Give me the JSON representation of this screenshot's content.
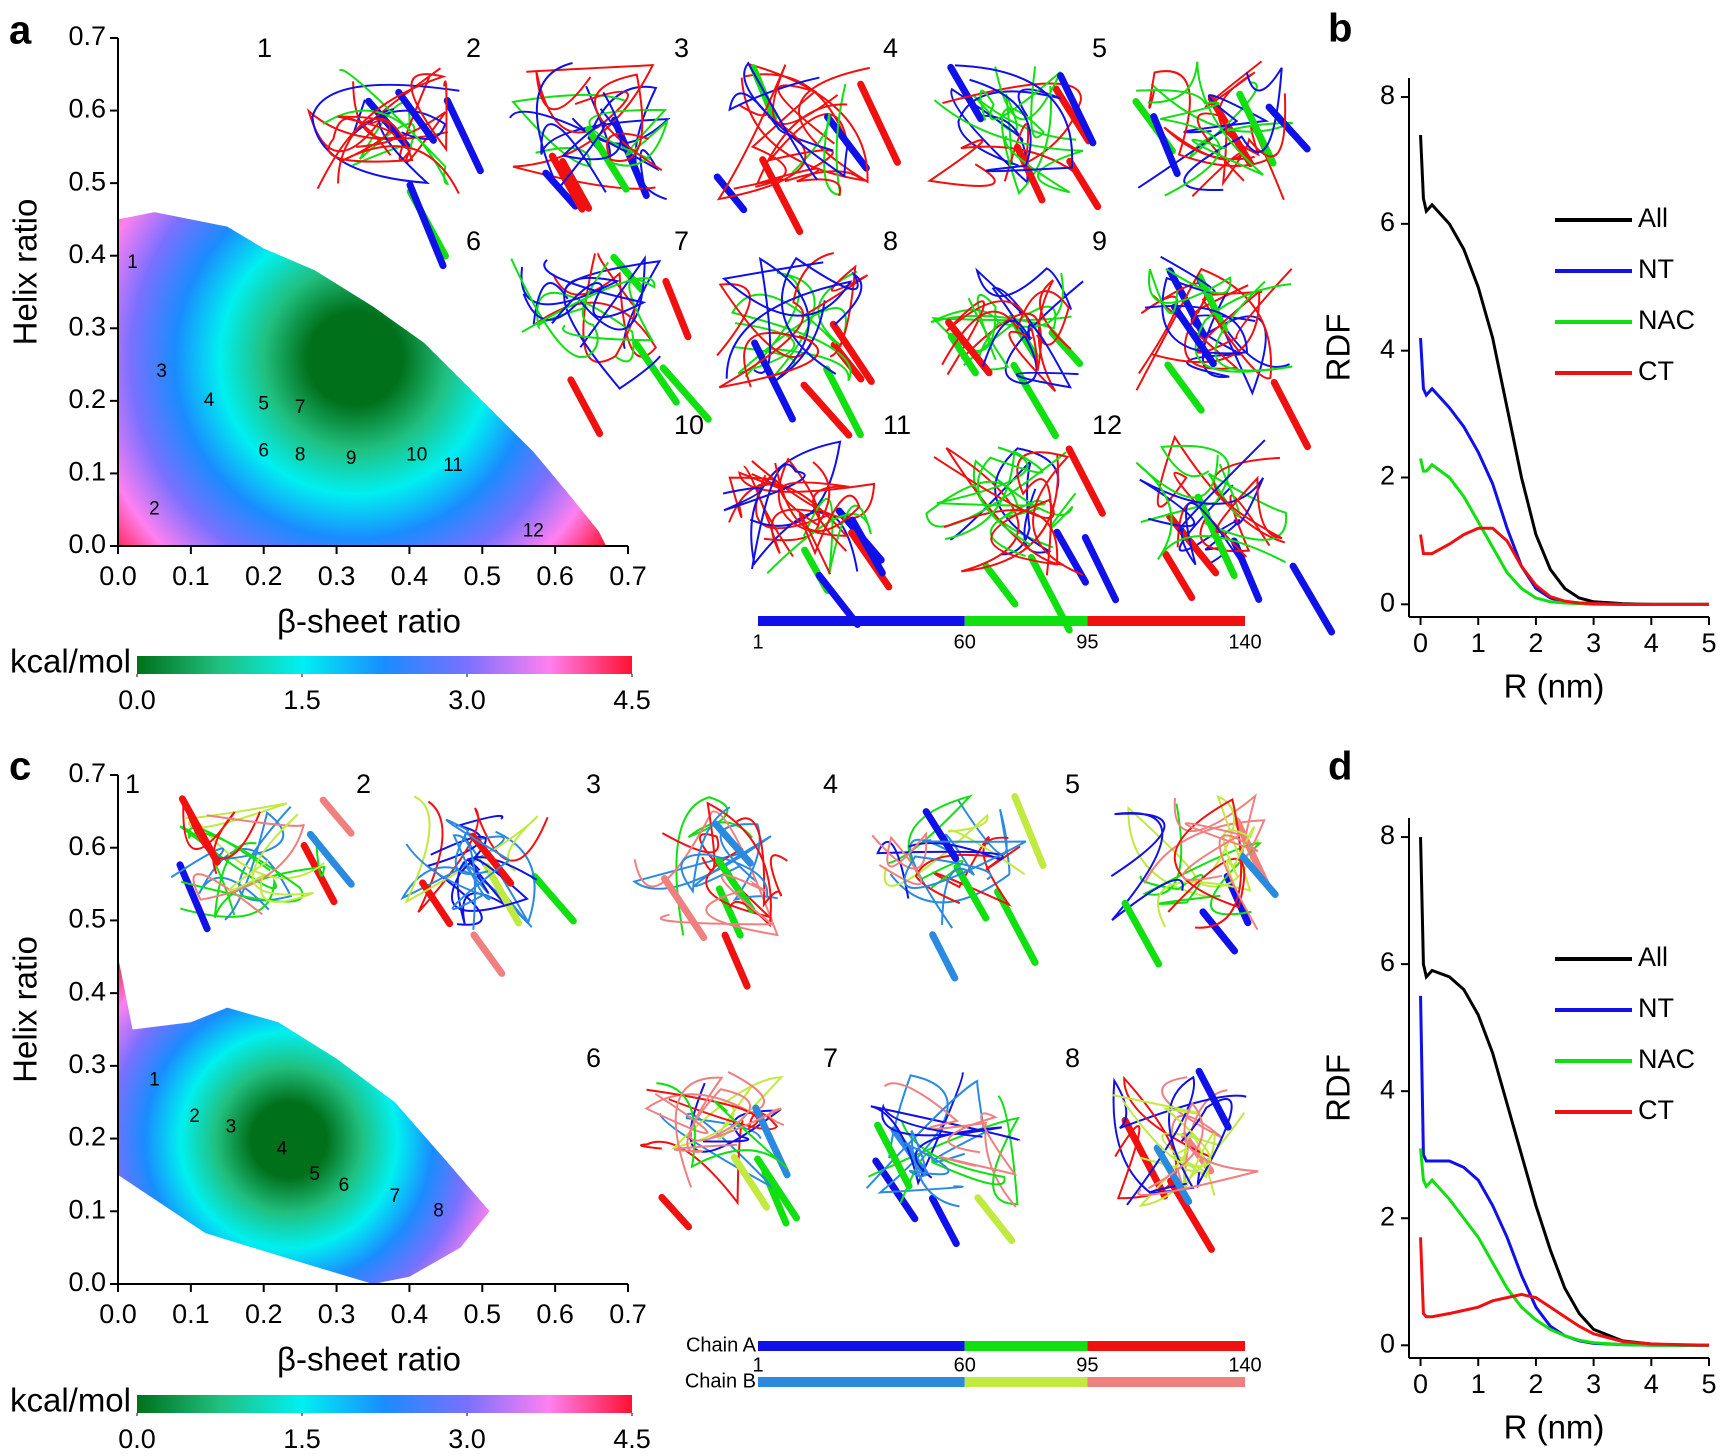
{
  "chart_data": [
    {
      "type": "contour",
      "panel": "a",
      "xlabel": "β-sheet ratio",
      "ylabel": "Helix ratio",
      "xlim": [
        0,
        0.7
      ],
      "ylim": [
        0,
        0.7
      ],
      "xticks": [
        {
          "value": 0,
          "label": "0.0"
        },
        0.1,
        0.2,
        0.3,
        0.4,
        0.5,
        0.6,
        0.7
      ],
      "yticks": [
        {
          "value": 0,
          "label": "0.0"
        },
        0.1,
        0.2,
        0.3,
        0.4,
        0.5,
        0.6,
        0.7
      ],
      "region": {
        "x": [
          0,
          0.05,
          0.1,
          0.15,
          0.2,
          0.27,
          0.35,
          0.42,
          0.5,
          0.57,
          0.62,
          0.66,
          0.67,
          0
        ],
        "y": [
          0.45,
          0.46,
          0.45,
          0.44,
          0.41,
          0.38,
          0.33,
          0.28,
          0.2,
          0.13,
          0.07,
          0.02,
          0,
          0
        ]
      },
      "points": {
        "labels": [
          "1",
          "2",
          "3",
          "4",
          "5",
          "6",
          "7",
          "8",
          "9",
          "10",
          "11",
          "12"
        ],
        "x": [
          0.02,
          0.05,
          0.06,
          0.125,
          0.2,
          0.2,
          0.25,
          0.25,
          0.32,
          0.41,
          0.46,
          0.57
        ],
        "y": [
          0.39,
          0.05,
          0.24,
          0.2,
          0.195,
          0.13,
          0.19,
          0.125,
          0.12,
          0.125,
          0.11,
          0.02
        ]
      },
      "colorbar": {
        "label": "kcal/mol",
        "lim": [
          0,
          4.5
        ],
        "ticks": [
          {
            "value": 0,
            "label": "0.0"
          },
          1.5,
          {
            "value": 3,
            "label": "3.0"
          },
          4.5
        ],
        "colors": [
          "#00701a",
          "#20c080",
          "#00f0f0",
          "#1a8cff",
          "#7a70ff",
          "#ff80f0",
          "#ff1030"
        ]
      },
      "structures": [
        "1",
        "2",
        "3",
        "4",
        "5",
        "6",
        "7",
        "8",
        "9",
        "10",
        "11",
        "12"
      ],
      "sequence": {
        "ticks": [
          1,
          60,
          95,
          140
        ],
        "chains": [
          {
            "colors": [
              "#1010e8",
              "#10e010",
              "#f01010"
            ]
          }
        ]
      }
    },
    {
      "type": "line",
      "panel": "b",
      "xlabel": "R (nm)",
      "ylabel": "RDF",
      "xlim": [
        -0.2,
        5
      ],
      "ylim": [
        -0.2,
        8.3
      ],
      "xticks": [
        0,
        1,
        2,
        3,
        4,
        5
      ],
      "yticks": [
        0,
        2,
        4,
        6,
        8
      ],
      "x": [
        0,
        0.05,
        0.1,
        0.2,
        0.5,
        0.75,
        1,
        1.25,
        1.5,
        1.75,
        2,
        2.25,
        2.5,
        2.75,
        3,
        3.5,
        4,
        4.5,
        5
      ],
      "series": [
        {
          "name": "All",
          "color": "#000000",
          "values": [
            7.4,
            6.4,
            6.2,
            6.3,
            6.0,
            5.6,
            5.0,
            4.2,
            3.1,
            2.0,
            1.1,
            0.55,
            0.25,
            0.1,
            0.04,
            0.01,
            0,
            0,
            0
          ]
        },
        {
          "name": "NT",
          "color": "#1010e8",
          "values": [
            4.2,
            3.4,
            3.3,
            3.4,
            3.1,
            2.8,
            2.4,
            1.9,
            1.2,
            0.6,
            0.25,
            0.1,
            0.04,
            0.02,
            0.01,
            0,
            0,
            0,
            0
          ]
        },
        {
          "name": "NAC",
          "color": "#10e010",
          "values": [
            2.3,
            2.1,
            2.1,
            2.2,
            2.0,
            1.7,
            1.3,
            0.9,
            0.5,
            0.25,
            0.1,
            0.04,
            0.02,
            0.01,
            0,
            0,
            0,
            0,
            0
          ]
        },
        {
          "name": "CT",
          "color": "#f01010",
          "values": [
            1.1,
            0.8,
            0.8,
            0.8,
            0.95,
            1.1,
            1.2,
            1.2,
            1.0,
            0.6,
            0.3,
            0.12,
            0.05,
            0.02,
            0.01,
            0,
            0,
            0,
            0
          ]
        }
      ]
    },
    {
      "type": "contour",
      "panel": "c",
      "xlabel": "β-sheet ratio",
      "ylabel": "Helix ratio",
      "xlim": [
        0,
        0.7
      ],
      "ylim": [
        0,
        0.7
      ],
      "xticks": [
        {
          "value": 0,
          "label": "0.0"
        },
        0.1,
        0.2,
        0.3,
        0.4,
        0.5,
        0.6,
        0.7
      ],
      "yticks": [
        {
          "value": 0,
          "label": "0.0"
        },
        0.1,
        0.2,
        0.3,
        0.4,
        0.5,
        0.6,
        0.7
      ],
      "region": {
        "x": [
          0,
          0.02,
          0.1,
          0.15,
          0.22,
          0.3,
          0.38,
          0.45,
          0.51,
          0.47,
          0.4,
          0.35,
          0.25,
          0.12,
          0.03,
          0
        ],
        "y": [
          0.45,
          0.35,
          0.36,
          0.38,
          0.36,
          0.31,
          0.25,
          0.17,
          0.1,
          0.05,
          0.01,
          0,
          0.03,
          0.07,
          0.13,
          0.15
        ]
      },
      "points": {
        "labels": [
          "1",
          "2",
          "3",
          "4",
          "5",
          "6",
          "7",
          "8"
        ],
        "x": [
          0.05,
          0.105,
          0.155,
          0.225,
          0.27,
          0.31,
          0.38,
          0.44
        ],
        "y": [
          0.28,
          0.23,
          0.215,
          0.185,
          0.15,
          0.135,
          0.12,
          0.1
        ]
      },
      "colorbar": {
        "label": "kcal/mol",
        "lim": [
          0,
          4.5
        ],
        "ticks": [
          {
            "value": 0,
            "label": "0.0"
          },
          1.5,
          {
            "value": 3,
            "label": "3.0"
          },
          4.5
        ],
        "colors": [
          "#00701a",
          "#20c080",
          "#00f0f0",
          "#1a8cff",
          "#7a70ff",
          "#ff80f0",
          "#ff1030"
        ]
      },
      "structures": [
        "1",
        "2",
        "3",
        "4",
        "5",
        "6",
        "7",
        "8"
      ],
      "sequence": {
        "ticks": [
          1,
          60,
          95,
          140
        ],
        "chains": [
          {
            "name": "Chain A",
            "colors": [
              "#1010e8",
              "#10e010",
              "#f01010"
            ]
          },
          {
            "name": "Chain B",
            "colors": [
              "#2a8ae0",
              "#c0ea40",
              "#f08080"
            ]
          }
        ]
      }
    },
    {
      "type": "line",
      "panel": "d",
      "xlabel": "R (nm)",
      "ylabel": "RDF",
      "xlim": [
        -0.2,
        5
      ],
      "ylim": [
        -0.2,
        8.3
      ],
      "xticks": [
        0,
        1,
        2,
        3,
        4,
        5
      ],
      "yticks": [
        0,
        2,
        4,
        6,
        8
      ],
      "x": [
        0,
        0.05,
        0.1,
        0.2,
        0.5,
        0.75,
        1,
        1.25,
        1.5,
        1.75,
        2,
        2.25,
        2.5,
        2.75,
        3,
        3.5,
        4,
        4.5,
        5
      ],
      "series": [
        {
          "name": "All",
          "color": "#000000",
          "values": [
            8.0,
            6.0,
            5.8,
            5.9,
            5.8,
            5.6,
            5.2,
            4.6,
            3.8,
            3.0,
            2.2,
            1.5,
            0.9,
            0.5,
            0.25,
            0.07,
            0.02,
            0,
            0
          ]
        },
        {
          "name": "NT",
          "color": "#1010e8",
          "values": [
            5.5,
            3.0,
            2.9,
            2.9,
            2.9,
            2.8,
            2.6,
            2.2,
            1.7,
            1.1,
            0.6,
            0.3,
            0.15,
            0.07,
            0.03,
            0.01,
            0,
            0,
            0
          ]
        },
        {
          "name": "NAC",
          "color": "#10e010",
          "values": [
            3.1,
            2.6,
            2.5,
            2.6,
            2.3,
            2.0,
            1.7,
            1.3,
            0.9,
            0.6,
            0.4,
            0.25,
            0.15,
            0.08,
            0.04,
            0.01,
            0,
            0,
            0
          ]
        },
        {
          "name": "CT",
          "color": "#f01010",
          "values": [
            1.7,
            0.5,
            0.45,
            0.45,
            0.5,
            0.55,
            0.6,
            0.7,
            0.75,
            0.8,
            0.75,
            0.6,
            0.45,
            0.3,
            0.18,
            0.06,
            0.02,
            0.01,
            0
          ]
        }
      ]
    }
  ]
}
